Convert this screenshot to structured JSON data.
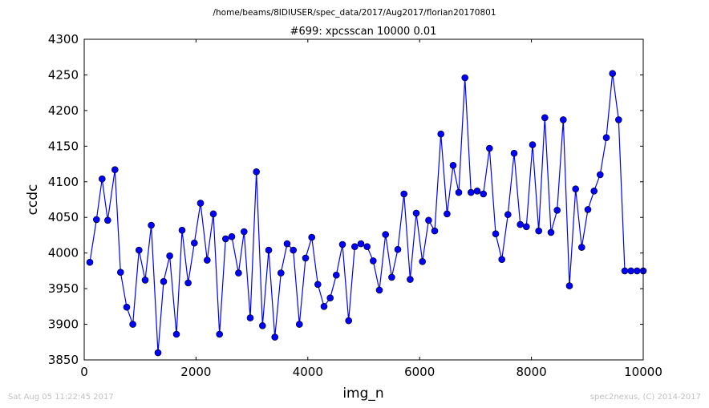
{
  "suptitle": "/home/beams/8IDIUSER/spec_data/2017/Aug2017/florian20170801",
  "footer_left": "Sat Aug 05 11:22:45 2017",
  "footer_right": "spec2nexus, (C) 2014-2017",
  "colors": {
    "line": "#0000ff",
    "marker": "#0000ff",
    "axes": "#000000",
    "footer": "#c0c0c0"
  },
  "chart_data": {
    "type": "line",
    "title": "#699: xpcsscan 10000 0.01",
    "xlabel": "img_n",
    "ylabel": "ccdc",
    "xlim": [
      0,
      10000
    ],
    "ylim": [
      3850,
      4300
    ],
    "xticks": [
      0,
      2000,
      4000,
      6000,
      8000,
      10000
    ],
    "yticks": [
      3850,
      3900,
      3950,
      4000,
      4050,
      4100,
      4150,
      4200,
      4250,
      4300
    ],
    "grid": false,
    "markers": "circle",
    "series": [
      {
        "x": [
          100,
          220,
          320,
          420,
          550,
          650,
          760,
          870,
          980,
          1090,
          1200,
          1320,
          1420,
          1530,
          1650,
          1750,
          1860,
          1970,
          2080,
          2200,
          2310,
          2420,
          2530,
          2640,
          2760,
          2860,
          2970,
          3080,
          3190,
          3300,
          3410,
          3520,
          3630,
          3740,
          3850,
          3960,
          4070,
          4180,
          4290,
          4400,
          4510,
          4620,
          4730,
          4840,
          4950,
          5060,
          5170,
          5280,
          5390,
          5500,
          5610,
          5720,
          5830,
          5940,
          6050,
          6160,
          6270,
          6380,
          6490,
          6600,
          6700,
          6810,
          6920,
          7030,
          7140,
          7250,
          7360,
          7470,
          7580,
          7690,
          7800,
          7910,
          8020,
          8130,
          8240,
          8350,
          8460,
          8570,
          8680,
          8790,
          8900,
          9010,
          9120,
          9230,
          9340,
          9450,
          9560,
          9670,
          9780,
          9890,
          10000
        ],
        "y": [
          3987,
          4047,
          4104,
          4046,
          4117,
          3973,
          3924,
          3900,
          4004,
          3962,
          4039,
          3860,
          3960,
          3996,
          3886,
          4032,
          3958,
          4014,
          4070,
          3990,
          4055,
          3886,
          4020,
          4023,
          3972,
          4030,
          3909,
          4114,
          3898,
          4004,
          3882,
          3972,
          4013,
          4004,
          3900,
          3993,
          4022,
          3956,
          3925,
          3937,
          3969,
          4012,
          3905,
          4009,
          4013,
          4009,
          3989,
          3948,
          4026,
          3966,
          4005,
          4083,
          3963,
          4056,
          3988,
          4046,
          4031,
          4167,
          4055,
          4123,
          4085,
          4246,
          4085,
          4087,
          4083,
          4147,
          4027,
          3991,
          4054,
          4140,
          4040,
          4037,
          4152,
          4031,
          4190,
          4029,
          4060,
          4187,
          3954,
          4090,
          4008,
          4061,
          4087,
          4110,
          4162,
          4252,
          4187,
          3975,
          3975,
          3975,
          3975
        ]
      }
    ]
  }
}
